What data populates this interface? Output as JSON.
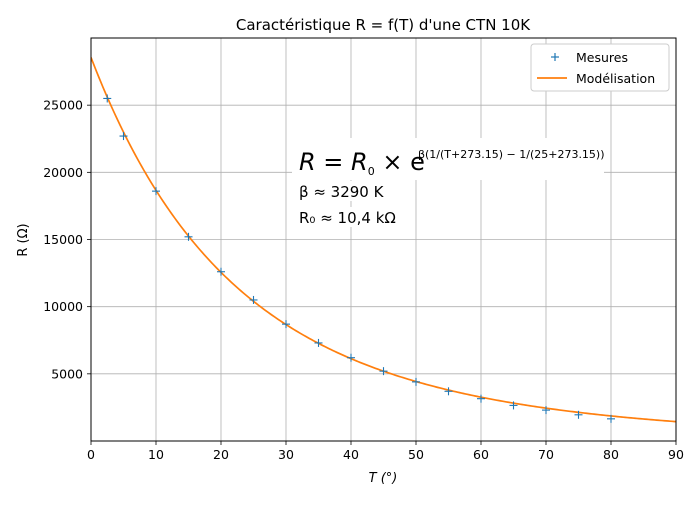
{
  "chart_data": {
    "type": "scatter",
    "title": "Caractéristique R = f(T) d'une CTN 10K",
    "xlabel": "T (°)",
    "ylabel": "R (Ω)",
    "xlim": [
      0,
      90
    ],
    "ylim": [
      0,
      30000
    ],
    "xticks": [
      0,
      10,
      20,
      30,
      40,
      50,
      60,
      70,
      80,
      90
    ],
    "yticks": [
      5000,
      10000,
      15000,
      20000,
      25000
    ],
    "grid": true,
    "legend_position": "top-right",
    "colors": {
      "measures": "#1f77b4",
      "model": "#ff7f0e"
    },
    "series": [
      {
        "name": "Mesures",
        "marker": "+",
        "x": [
          2.5,
          5,
          10,
          15,
          20,
          25,
          30,
          35,
          40,
          45,
          50,
          55,
          60,
          65,
          70,
          75,
          80
        ],
        "y": [
          25500,
          22700,
          18600,
          15200,
          12600,
          10500,
          8700,
          7300,
          6200,
          5200,
          4400,
          3700,
          3150,
          2650,
          2300,
          1950,
          1650
        ]
      },
      {
        "name": "Modélisation",
        "line": true,
        "model": {
          "R0": 10400,
          "beta": 3290,
          "T0": 25,
          "kelvin_offset": 273.15
        }
      }
    ],
    "annotation": {
      "formula_main": "R = R",
      "formula_sub0": "0",
      "formula_times": " × e",
      "formula_exponent": "β(1/(T+273.15) − 1/(25+273.15))",
      "beta_line": "β ≈ 3290 K",
      "r0_line": "R₀ ≈ 10,4 kΩ"
    }
  }
}
